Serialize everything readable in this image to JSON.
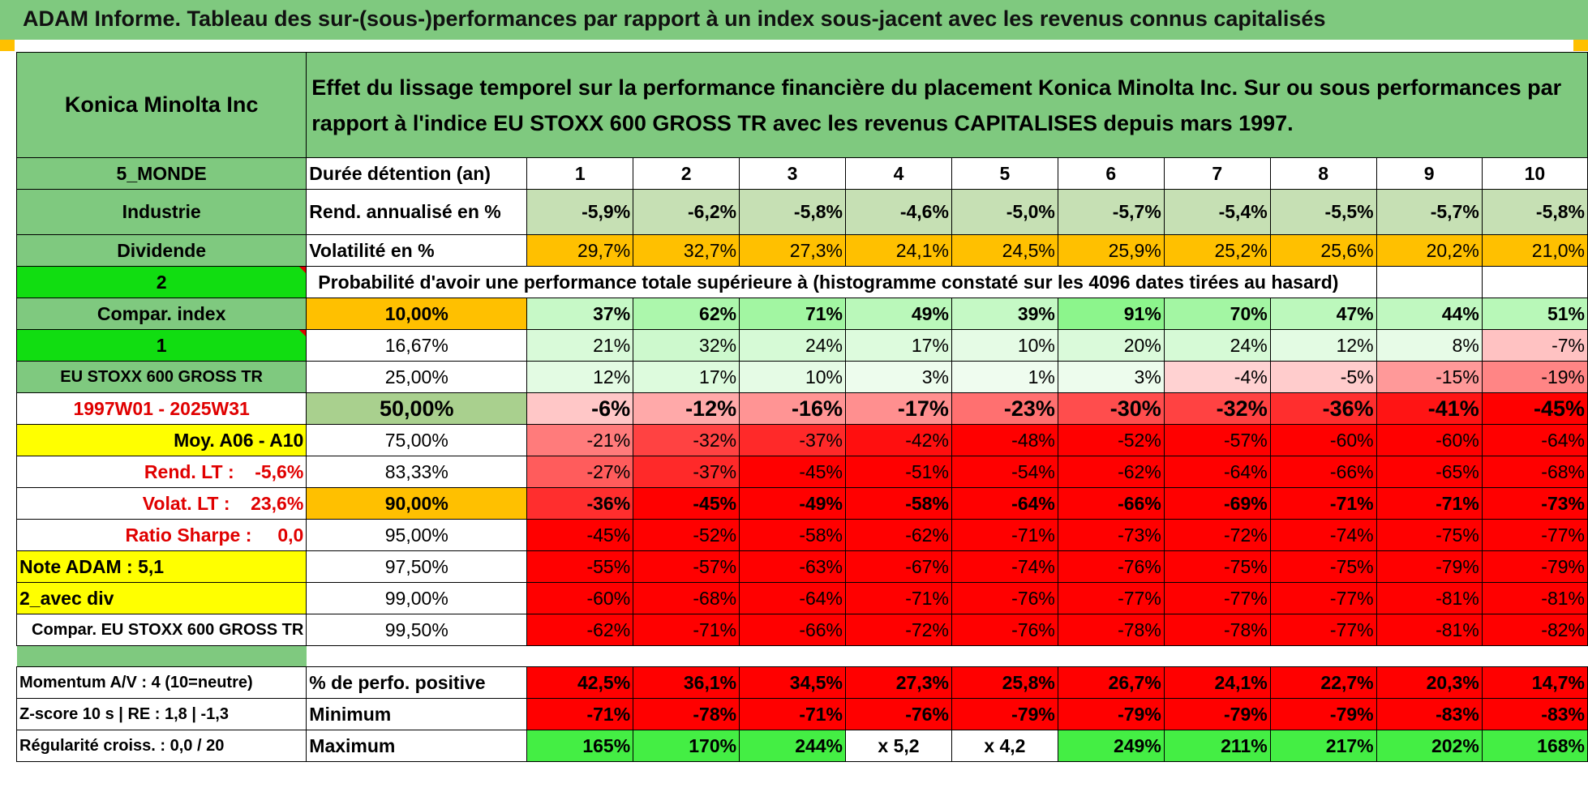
{
  "title": "ADAM Informe. Tableau des sur-(sous-)performances par rapport à un index sous-jacent avec les revenus connus capitalisés",
  "company": "Konica Minolta Inc",
  "description": "Effet du lissage temporel sur la performance financière du placement Konica Minolta Inc. Sur ou sous performances par rapport à l'indice EU STOXX 600 GROSS TR avec les revenus CAPITALISES depuis mars 1997.",
  "side": {
    "region": "5_MONDE",
    "sector": "Industrie",
    "dividend_label": "Dividende",
    "dividend_value": "2",
    "compar_label": "Compar. index",
    "compar_value": "1",
    "index_name": "EU STOXX 600 GROSS TR",
    "period": "1997W01 - 2025W31",
    "moy": "Moy. A06 - A10",
    "rend_lt": "Rend. LT :    -5,6%",
    "volat_lt": "Volat. LT :    23,6%",
    "sharpe": "Ratio Sharpe :     0,0",
    "note": "Note ADAM : 5,1",
    "avec_div": "2_avec div",
    "compar_full": "Compar. EU STOXX 600 GROSS TR",
    "momentum": "Momentum A/V : 4 (10=neutre)",
    "zscore": "Z-score 10 s | RE : 1,8 | -1,3",
    "regularite": "Régularité croiss. : 0,0 / 20"
  },
  "holding_label": "Durée détention (an)",
  "years": [
    "1",
    "2",
    "3",
    "4",
    "5",
    "6",
    "7",
    "8",
    "9",
    "10"
  ],
  "rend_label": "Rend. annualisé en %",
  "rend": [
    "-5,9%",
    "-6,2%",
    "-5,8%",
    "-4,6%",
    "-5,0%",
    "-5,7%",
    "-5,4%",
    "-5,5%",
    "-5,7%",
    "-5,8%"
  ],
  "vol_label": "Volatilité en %",
  "vol": [
    "29,7%",
    "32,7%",
    "27,3%",
    "24,1%",
    "24,5%",
    "25,9%",
    "25,2%",
    "25,6%",
    "20,2%",
    "21,0%"
  ],
  "prob_label": "Probabilité d'avoir une performance totale supérieure à (histogramme constaté sur les 4096 dates tirées au hasard)",
  "percentiles": [
    {
      "p": "10,00%",
      "v": [
        "37%",
        "62%",
        "71%",
        "49%",
        "39%",
        "91%",
        "70%",
        "47%",
        "44%",
        "51%"
      ]
    },
    {
      "p": "16,67%",
      "v": [
        "21%",
        "32%",
        "24%",
        "17%",
        "10%",
        "20%",
        "24%",
        "12%",
        "8%",
        "-7%"
      ]
    },
    {
      "p": "25,00%",
      "v": [
        "12%",
        "17%",
        "10%",
        "3%",
        "1%",
        "3%",
        "-4%",
        "-5%",
        "-15%",
        "-19%"
      ]
    },
    {
      "p": "50,00%",
      "v": [
        "-6%",
        "-12%",
        "-16%",
        "-17%",
        "-23%",
        "-30%",
        "-32%",
        "-36%",
        "-41%",
        "-45%"
      ]
    },
    {
      "p": "75,00%",
      "v": [
        "-21%",
        "-32%",
        "-37%",
        "-42%",
        "-48%",
        "-52%",
        "-57%",
        "-60%",
        "-60%",
        "-64%"
      ]
    },
    {
      "p": "83,33%",
      "v": [
        "-27%",
        "-37%",
        "-45%",
        "-51%",
        "-54%",
        "-62%",
        "-64%",
        "-66%",
        "-65%",
        "-68%"
      ]
    },
    {
      "p": "90,00%",
      "v": [
        "-36%",
        "-45%",
        "-49%",
        "-58%",
        "-64%",
        "-66%",
        "-69%",
        "-71%",
        "-71%",
        "-73%"
      ]
    },
    {
      "p": "95,00%",
      "v": [
        "-45%",
        "-52%",
        "-58%",
        "-62%",
        "-71%",
        "-73%",
        "-72%",
        "-74%",
        "-75%",
        "-77%"
      ]
    },
    {
      "p": "97,50%",
      "v": [
        "-55%",
        "-57%",
        "-63%",
        "-67%",
        "-74%",
        "-76%",
        "-75%",
        "-75%",
        "-79%",
        "-79%"
      ]
    },
    {
      "p": "99,00%",
      "v": [
        "-60%",
        "-68%",
        "-64%",
        "-71%",
        "-76%",
        "-77%",
        "-77%",
        "-77%",
        "-81%",
        "-81%"
      ]
    },
    {
      "p": "99,50%",
      "v": [
        "-62%",
        "-71%",
        "-66%",
        "-72%",
        "-76%",
        "-78%",
        "-78%",
        "-77%",
        "-81%",
        "-82%"
      ]
    }
  ],
  "pos_label": "% de perfo. positive",
  "pos": [
    "42,5%",
    "36,1%",
    "34,5%",
    "27,3%",
    "25,8%",
    "26,7%",
    "24,1%",
    "22,7%",
    "20,3%",
    "14,7%"
  ],
  "min_label": "Minimum",
  "min": [
    "-71%",
    "-78%",
    "-71%",
    "-76%",
    "-79%",
    "-79%",
    "-79%",
    "-79%",
    "-83%",
    "-83%"
  ],
  "max_label": "Maximum",
  "max": [
    "165%",
    "170%",
    "244%",
    "x 5,2",
    "x 4,2",
    "249%",
    "211%",
    "217%",
    "202%",
    "168%"
  ],
  "colors": {
    "header_green": "#7fc97f",
    "bright_green": "#11dd11",
    "yellow": "#ffff00",
    "orange": "#ffc000",
    "red": "#ff0000",
    "light_green": "#c6e0b4",
    "label_red": "#e00000"
  }
}
